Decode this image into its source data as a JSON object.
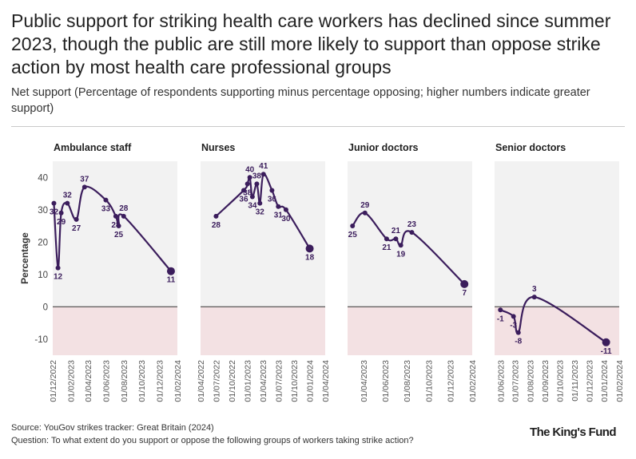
{
  "title": "Public support for striking health care workers has declined since summer 2023, though the public are still more likely to support than oppose strike action by most health care professional groups",
  "subtitle": "Net support (Percentage of respondents supporting minus percentage opposing; higher numbers indicate greater support)",
  "source": "Source: YouGov strikes tracker: Great Britain (2024)",
  "question": "Question: To what extent do you support or oppose the following groups of workers taking strike action?",
  "logo": "The King's Fund",
  "colors": {
    "line": "#3b1d5c",
    "negative_band": "#f3e1e3",
    "panel_bg": "#f2f2f2",
    "zero_line": "#333333"
  },
  "chart_data": {
    "type": "line",
    "ylabel": "Percentage",
    "ylim": [
      -15,
      45
    ],
    "yticks": [
      -10,
      0,
      10,
      20,
      30,
      40
    ],
    "panels": [
      {
        "name": "Ambulance staff",
        "xlim": [
          "2022-12-01",
          "2024-02-01"
        ],
        "xticks": [
          "01/12/2022",
          "01/02/2023",
          "01/04/2023",
          "01/06/2023",
          "01/08/2023",
          "01/10/2023",
          "01/12/2023",
          "01/02/2024"
        ],
        "points": [
          {
            "date": "2022-12-05",
            "value": 32,
            "label": "32"
          },
          {
            "date": "2022-12-19",
            "value": 12,
            "label": "12"
          },
          {
            "date": "2022-12-30",
            "value": 29,
            "label": "29"
          },
          {
            "date": "2023-01-20",
            "value": 32,
            "label": "32"
          },
          {
            "date": "2023-02-20",
            "value": 27,
            "label": "27"
          },
          {
            "date": "2023-03-20",
            "value": 37,
            "label": "37"
          },
          {
            "date": "2023-06-01",
            "value": 33,
            "label": "33"
          },
          {
            "date": "2023-07-05",
            "value": 28,
            "label": "28"
          },
          {
            "date": "2023-07-15",
            "value": 25,
            "label": "25"
          },
          {
            "date": "2023-08-01",
            "value": 28,
            "label": "28"
          },
          {
            "date": "2024-01-10",
            "value": 11,
            "label": "11"
          }
        ]
      },
      {
        "name": "Nurses",
        "xlim": [
          "2022-04-01",
          "2024-04-01"
        ],
        "xticks": [
          "01/04/2022",
          "01/07/2022",
          "01/10/2022",
          "01/01/2023",
          "01/04/2023",
          "01/07/2023",
          "01/10/2023",
          "01/01/2024",
          "01/04/2024"
        ],
        "points": [
          {
            "date": "2022-07-01",
            "value": 28,
            "label": "28"
          },
          {
            "date": "2022-12-10",
            "value": 36,
            "label": "36"
          },
          {
            "date": "2023-01-01",
            "value": 38,
            "label": "38"
          },
          {
            "date": "2023-01-15",
            "value": 40,
            "label": "40"
          },
          {
            "date": "2023-01-30",
            "value": 34,
            "label": "34"
          },
          {
            "date": "2023-02-25",
            "value": 38,
            "label": "38"
          },
          {
            "date": "2023-03-15",
            "value": 32,
            "label": "32"
          },
          {
            "date": "2023-04-05",
            "value": 41,
            "label": "41"
          },
          {
            "date": "2023-05-25",
            "value": 36,
            "label": "36"
          },
          {
            "date": "2023-07-01",
            "value": 31,
            "label": "31"
          },
          {
            "date": "2023-08-15",
            "value": 30,
            "label": "30"
          },
          {
            "date": "2024-01-01",
            "value": 18,
            "label": "18"
          }
        ]
      },
      {
        "name": "Junior doctors",
        "xlim": [
          "2023-02-15",
          "2024-02-01"
        ],
        "xticks": [
          "01/04/2023",
          "01/06/2023",
          "01/08/2023",
          "01/10/2023",
          "01/12/2023",
          "01/02/2024"
        ],
        "points": [
          {
            "date": "2023-03-01",
            "value": 25,
            "label": "25"
          },
          {
            "date": "2023-04-05",
            "value": 29,
            "label": "29"
          },
          {
            "date": "2023-06-05",
            "value": 21,
            "label": "21"
          },
          {
            "date": "2023-07-01",
            "value": 21,
            "label": "21"
          },
          {
            "date": "2023-07-15",
            "value": 19,
            "label": "19"
          },
          {
            "date": "2023-08-15",
            "value": 23,
            "label": "23"
          },
          {
            "date": "2024-01-10",
            "value": 7,
            "label": "7"
          }
        ]
      },
      {
        "name": "Senior doctors",
        "xlim": [
          "2023-05-20",
          "2024-02-01"
        ],
        "xticks": [
          "01/06/2023",
          "01/07/2023",
          "01/08/2023",
          "01/09/2023",
          "01/10/2023",
          "01/11/2023",
          "01/12/2023",
          "01/01/2024",
          "01/02/2024"
        ],
        "points": [
          {
            "date": "2023-06-01",
            "value": -1,
            "label": "-1"
          },
          {
            "date": "2023-06-28",
            "value": -3,
            "label": "-3"
          },
          {
            "date": "2023-07-08",
            "value": -8,
            "label": "-8"
          },
          {
            "date": "2023-08-10",
            "value": 3,
            "label": "3"
          },
          {
            "date": "2024-01-05",
            "value": -11,
            "label": "-11"
          }
        ]
      }
    ]
  }
}
